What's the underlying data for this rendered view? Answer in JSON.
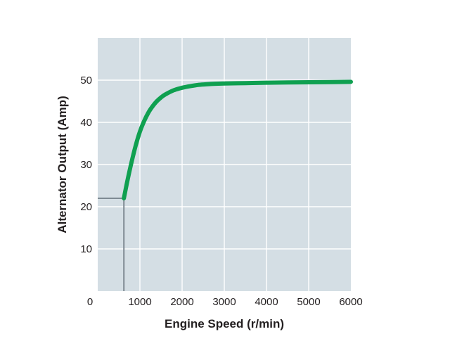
{
  "chart_data": {
    "type": "line",
    "title": "",
    "xlabel": "Engine Speed (r/min)",
    "ylabel": "Alternator Output (Amp)",
    "xlim": [
      0,
      6000
    ],
    "ylim": [
      0,
      60
    ],
    "x_ticks": [
      0,
      1000,
      2000,
      3000,
      4000,
      5000,
      6000
    ],
    "y_ticks": [
      10,
      20,
      30,
      40,
      50
    ],
    "grid": true,
    "legend": "none",
    "series": [
      {
        "color": "#0fa050",
        "x": [
          620,
          700,
          800,
          900,
          1000,
          1100,
          1200,
          1300,
          1400,
          1500,
          1600,
          1800,
          2000,
          2200,
          2400,
          2600,
          2800,
          3000,
          3500,
          4000,
          4500,
          5000,
          5500,
          6000
        ],
        "y": [
          22,
          26,
          30.5,
          34.5,
          37.8,
          40.3,
          42.3,
          43.8,
          45,
          45.9,
          46.6,
          47.6,
          48.2,
          48.6,
          48.9,
          49.05,
          49.15,
          49.2,
          49.3,
          49.4,
          49.45,
          49.5,
          49.55,
          49.6
        ]
      }
    ],
    "annotations": [
      {
        "type": "drop-lines",
        "x": 620,
        "y": 22,
        "color": "#7f8a93"
      }
    ]
  },
  "colors": {
    "plot_background": "#d4dee4",
    "gridline": "#ffffff",
    "text": "#231f20"
  }
}
